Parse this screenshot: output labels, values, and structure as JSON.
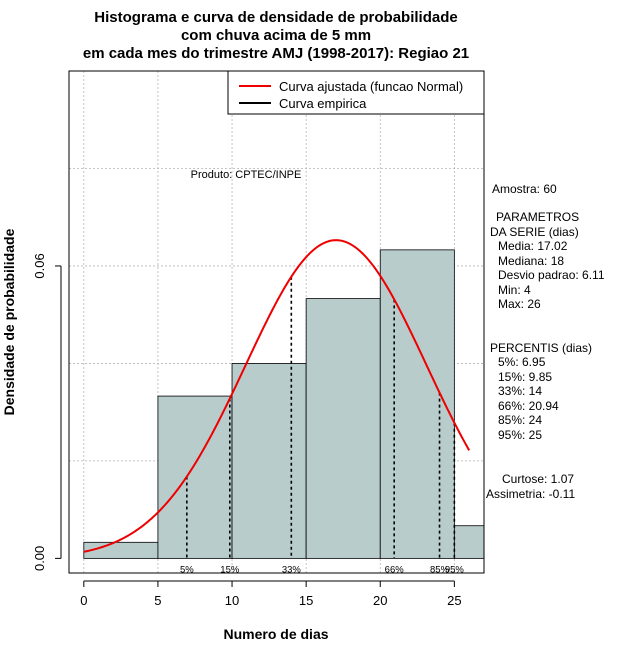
{
  "chart_data": {
    "type": "histogram",
    "title": [
      "Histograma e curva de densidade de probabilidade",
      "com chuva acima de 5 mm",
      "em cada mes do trimestre AMJ (1998-2017): Regiao 21"
    ],
    "xlabel": "Numero de dias",
    "ylabel": "Densidade de probabilidade",
    "xlim": [
      -1,
      27
    ],
    "ylim": [
      -0.003,
      0.1
    ],
    "x_ticks": [
      0,
      5,
      10,
      15,
      20,
      25
    ],
    "x_tick_labels": [
      "0",
      "5",
      "10",
      "15",
      "20",
      "25"
    ],
    "y_ticks": [
      0.0,
      0.06
    ],
    "y_tick_labels": [
      "0.00",
      "0.06"
    ],
    "grid": true,
    "grid_x": [
      0,
      5,
      10,
      15,
      20,
      25
    ],
    "grid_y": [
      0.02,
      0.04,
      0.06,
      0.08,
      0.1
    ],
    "bins": [
      {
        "start": 0,
        "end": 5,
        "density": 0.0033
      },
      {
        "start": 5,
        "end": 10,
        "density": 0.0333
      },
      {
        "start": 10,
        "end": 15,
        "density": 0.04
      },
      {
        "start": 15,
        "end": 20,
        "density": 0.0533
      },
      {
        "start": 20,
        "end": 25,
        "density": 0.0633
      },
      {
        "start": 25,
        "end": 27,
        "density": 0.0067
      }
    ],
    "fitted_curve": {
      "name": "Curva ajustada (funcao Normal)",
      "distribution": "normal",
      "mean": 17.02,
      "sd": 6.11,
      "x_range": [
        0,
        26
      ],
      "color": "#ee0000"
    },
    "empirical_curve": {
      "name": "Curva empirica",
      "color": "#000000"
    },
    "percentiles": [
      {
        "label": "5%",
        "x": 6.95
      },
      {
        "label": "15%",
        "x": 9.85
      },
      {
        "label": "33%",
        "x": 14
      },
      {
        "label": "66%",
        "x": 20.94
      },
      {
        "label": "85%",
        "x": 24
      },
      {
        "label": "95%",
        "x": 25
      }
    ],
    "legend": {
      "position": "top-right",
      "entries": [
        "Curva ajustada (funcao Normal)",
        "Curva empirica"
      ]
    },
    "annotation": "Produto: CPTEC/INPE",
    "bar_color": "#b8cccc",
    "series_colors": {
      "fitted": "#ee0000",
      "empirical": "#000000"
    }
  },
  "sidebar": {
    "amostra": "Amostra: 60",
    "params_title": [
      "PARAMETROS",
      "DA SERIE (dias)"
    ],
    "params": [
      "Media: 17.02",
      "Mediana: 18",
      "Desvio padrao: 6.11",
      "Min: 4",
      "Max: 26"
    ],
    "percentis_title": "PERCENTIS (dias)",
    "percentis": [
      "5%: 6.95",
      "15%: 9.85",
      "33%: 14",
      "66%: 20.94",
      "85%: 24",
      "95%: 25"
    ],
    "curtose": "Curtose: 1.07",
    "assimetria": "Assimetria: -0.11"
  }
}
